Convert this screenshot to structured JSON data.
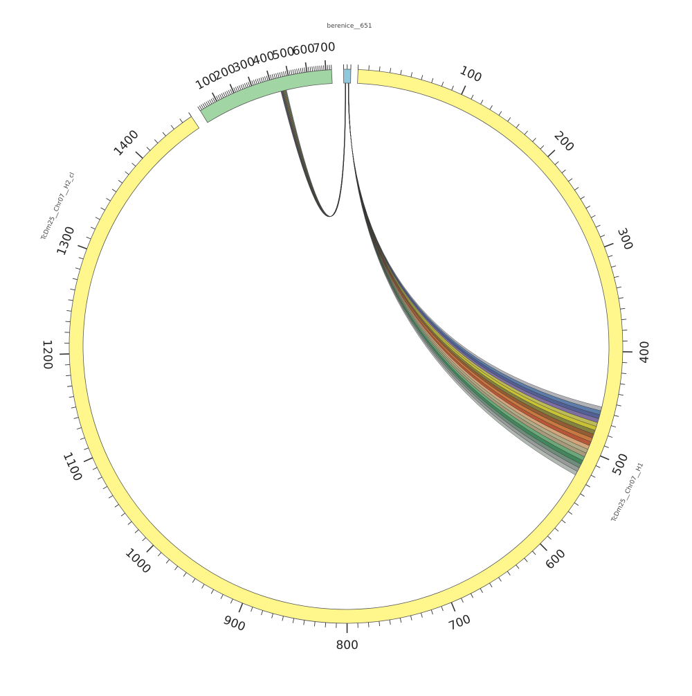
{
  "sequences": [
    {
      "id": "berenice",
      "label": "berenice__651",
      "length": 20,
      "color": "#8ec9e0",
      "tick_labels": []
    },
    {
      "id": "chr07_h1",
      "label": "TcDm25__Chr07__H1",
      "length": 1460,
      "color": "#fff78c",
      "tick_labels": [
        "100",
        "200",
        "300",
        "400",
        "500",
        "600",
        "700",
        "800",
        "900",
        "1000",
        "1100",
        "1200",
        "1300",
        "1400"
      ]
    },
    {
      "id": "chr07_h2",
      "label": "TcDm25__Chr07__H2_cl",
      "length": 730,
      "color": "#a1d6a4",
      "tick_labels": [
        "100",
        "200",
        "300",
        "400",
        "500",
        "600",
        "700"
      ]
    }
  ],
  "links": {
    "to_h1": {
      "h1_start": 455,
      "h1_end": 527,
      "colors": [
        "#a8aab0",
        "#4a6fa0",
        "#3f4f8a",
        "#6f5f98",
        "#b7b243",
        "#c2ba1f",
        "#77742a",
        "#8a4a1e",
        "#c26a2a",
        "#b04522",
        "#cf9b6b",
        "#a8a27a",
        "#9d906d",
        "#5a9e6c",
        "#2d7a4a",
        "#5d7f6a",
        "#8c918f",
        "#a8b0aa"
      ]
    },
    "to_h2": {
      "h2_start": 442,
      "h2_end": 474,
      "colors": [
        "#8c6a7a",
        "#6b5a8a",
        "#4f7090",
        "#3f7a6a",
        "#b09060",
        "#c07030",
        "#d09a50",
        "#c0b040",
        "#60a090",
        "#90b0c0"
      ]
    }
  }
}
